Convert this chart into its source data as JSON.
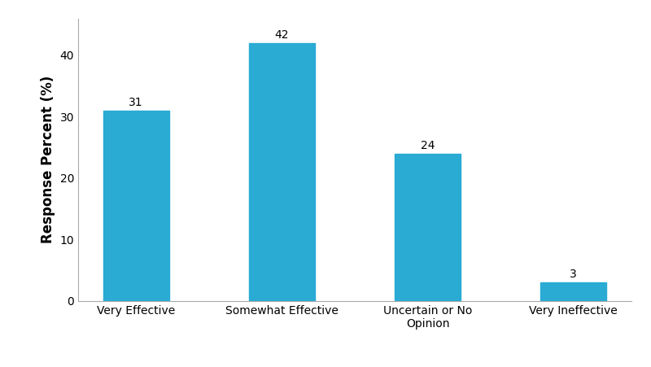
{
  "categories": [
    "Very Effective",
    "Somewhat Effective",
    "Uncertain or No\nOpinion",
    "Very Ineffective"
  ],
  "values": [
    31,
    42,
    24,
    3
  ],
  "bar_color": "#29ABD4",
  "ylabel": "Response Percent (%)",
  "ylim": [
    0,
    46
  ],
  "yticks": [
    0,
    10,
    20,
    30,
    40
  ],
  "bar_width": 0.45,
  "label_fontsize": 10,
  "tick_fontsize": 10,
  "ylabel_fontsize": 12,
  "background_color": "#ffffff",
  "plot_bg_color": "#ffffff",
  "spine_color": "#aaaaaa"
}
